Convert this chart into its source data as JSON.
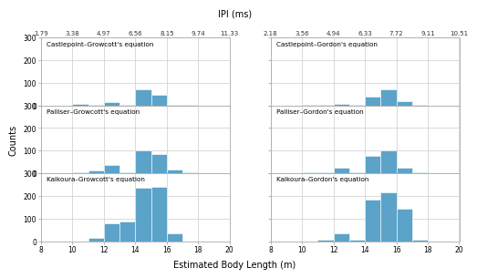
{
  "bar_color": "#5BA3C9",
  "bar_edgecolor": "#5BA3C9",
  "background_color": "#ffffff",
  "grid_color": "#cccccc",
  "xlim": [
    8,
    20
  ],
  "ylim": [
    0,
    300
  ],
  "yticks": [
    0,
    100,
    200,
    300
  ],
  "xticks": [
    8,
    10,
    12,
    14,
    16,
    18,
    20
  ],
  "xlabel": "Estimated Body Length (m)",
  "ylabel": "Counts",
  "ipi_title": "IPI (ms)",
  "panels": [
    {
      "title": "Castlepoint–Growcott's equation",
      "ipi_ticks": [
        "1.79",
        "3.38",
        "4.97",
        "6.56",
        "8.15",
        "9.74",
        "11.33"
      ],
      "bins_left": [
        8,
        9,
        10,
        11,
        12,
        13,
        14,
        15,
        16,
        17,
        18,
        19
      ],
      "counts": [
        0,
        0,
        8,
        4,
        14,
        3,
        70,
        48,
        3,
        1,
        0,
        0
      ]
    },
    {
      "title": "Castlepoint–Gordon's equation",
      "ipi_ticks": [
        "2.18",
        "3.56",
        "4.94",
        "6.33",
        "7.72",
        "9.11",
        "10.51"
      ],
      "bins_left": [
        8,
        9,
        10,
        11,
        12,
        13,
        14,
        15,
        16,
        17,
        18,
        19
      ],
      "counts": [
        0,
        0,
        2,
        2,
        5,
        2,
        40,
        72,
        20,
        2,
        0,
        0
      ]
    },
    {
      "title": "Palliser–Growcott's equation",
      "ipi_ticks": [
        "1.79",
        "3.38",
        "4.97",
        "6.56",
        "8.15",
        "9.74",
        "11.33"
      ],
      "bins_left": [
        8,
        9,
        10,
        11,
        12,
        13,
        14,
        15,
        16,
        17,
        18,
        19
      ],
      "counts": [
        0,
        0,
        5,
        12,
        35,
        5,
        100,
        85,
        15,
        5,
        0,
        0
      ]
    },
    {
      "title": "Palliser–Gordon's equation",
      "ipi_ticks": [
        "2.18",
        "3.56",
        "4.94",
        "6.33",
        "7.72",
        "9.11",
        "10.51"
      ],
      "bins_left": [
        8,
        9,
        10,
        11,
        12,
        13,
        14,
        15,
        16,
        17,
        18,
        19
      ],
      "counts": [
        0,
        0,
        3,
        5,
        25,
        5,
        78,
        103,
        25,
        5,
        2,
        0
      ]
    },
    {
      "title": "Kaikoura–Growcott's equation",
      "ipi_ticks": [
        "1.79",
        "3.38",
        "4.97",
        "6.56",
        "8.15",
        "9.74",
        "11.33"
      ],
      "bins_left": [
        8,
        9,
        10,
        11,
        12,
        13,
        14,
        15,
        16,
        17,
        18,
        19
      ],
      "counts": [
        0,
        0,
        0,
        15,
        80,
        85,
        235,
        240,
        35,
        0,
        0,
        0
      ]
    },
    {
      "title": "Kaikoura–Gordon's equation",
      "ipi_ticks": [
        "2.18",
        "3.56",
        "4.94",
        "6.33",
        "7.72",
        "9.11",
        "10.51"
      ],
      "bins_left": [
        8,
        9,
        10,
        11,
        12,
        13,
        14,
        15,
        16,
        17,
        18,
        19
      ],
      "counts": [
        0,
        0,
        0,
        8,
        35,
        5,
        185,
        215,
        145,
        5,
        0,
        0
      ]
    }
  ]
}
